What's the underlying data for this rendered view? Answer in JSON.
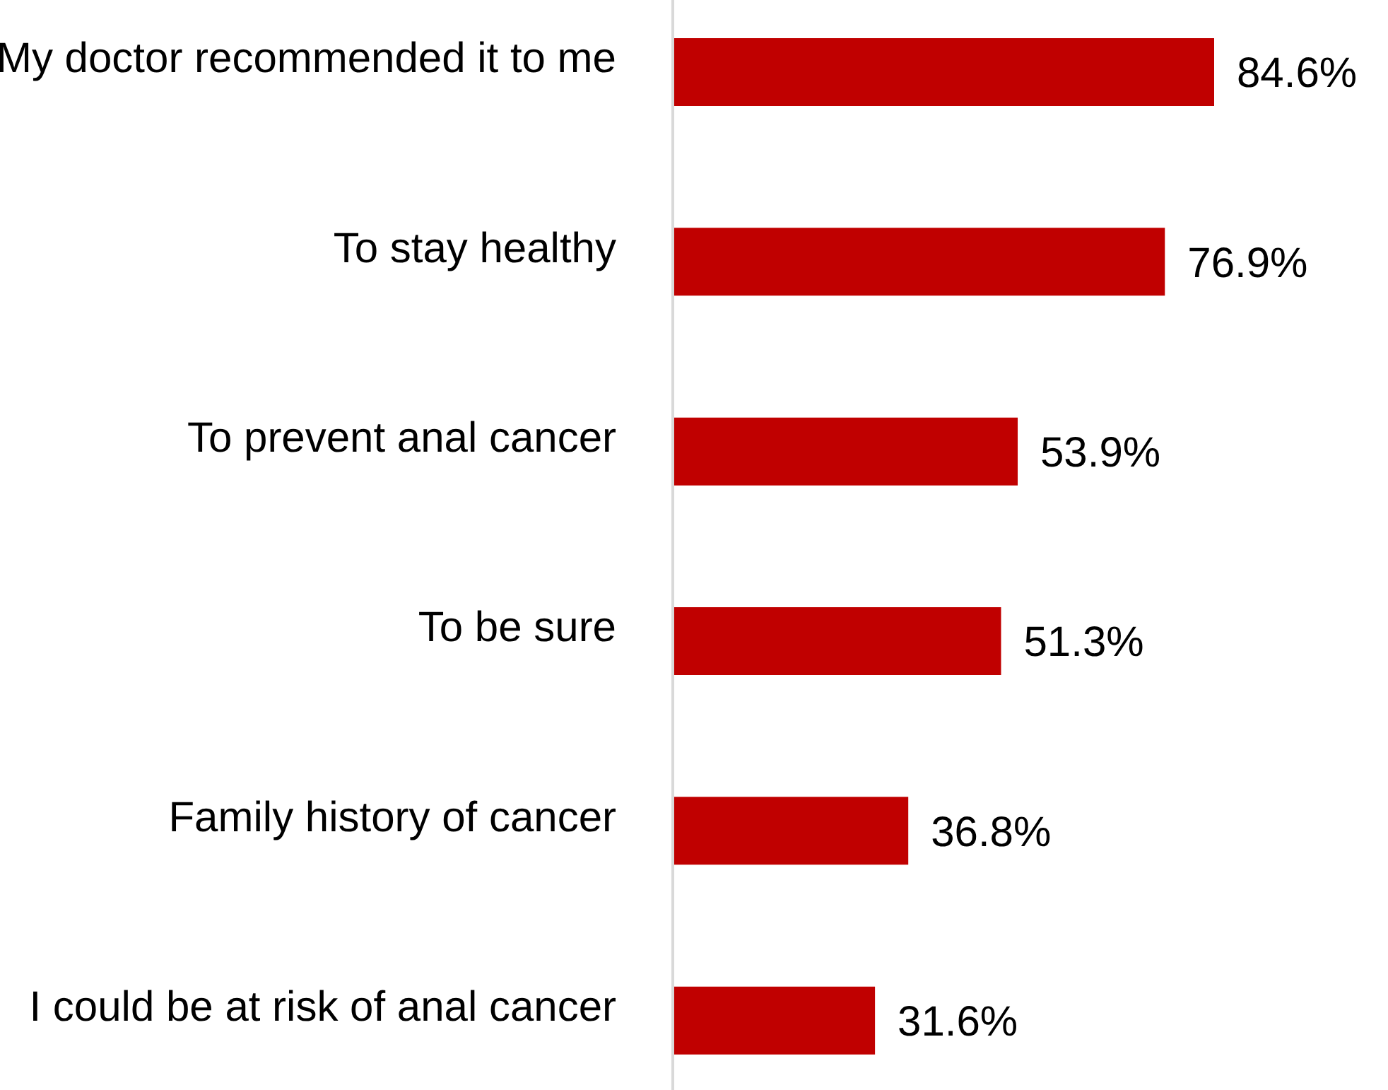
{
  "chart_data": {
    "type": "bar",
    "orientation": "horizontal",
    "categories": [
      "My doctor recommended it to me",
      "To stay healthy",
      "To prevent anal cancer",
      "To be sure",
      "Family history of cancer",
      "I could be at risk of anal cancer"
    ],
    "values": [
      84.6,
      76.9,
      53.9,
      51.3,
      36.8,
      31.6
    ],
    "value_labels": [
      "84.6%",
      "76.9%",
      "53.9%",
      "51.3%",
      "36.8%",
      "31.6%"
    ],
    "color": "#c00000",
    "grid": false,
    "legend": false
  }
}
